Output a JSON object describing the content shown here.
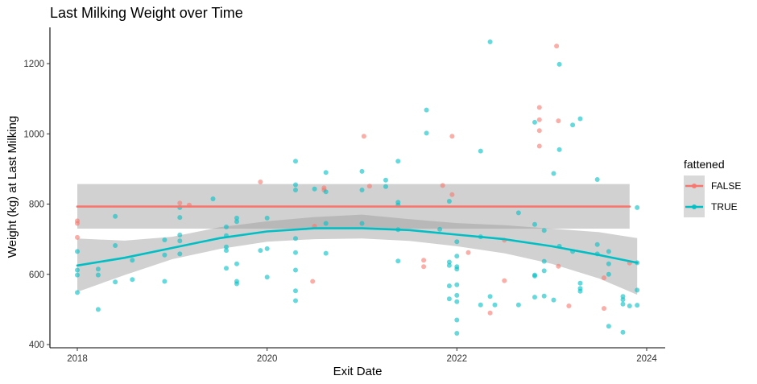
{
  "chart_data": {
    "type": "scatter",
    "title": "Last Milking Weight over Time",
    "xlabel": "Exit Date",
    "ylabel": "Weight (kg) at Last Milking",
    "xlim": [
      2017.75,
      2024.15
    ],
    "ylim": [
      395,
      1300
    ],
    "xticks": [
      2018,
      2020,
      2022,
      2024
    ],
    "xtick_labels": [
      "2018",
      "2020",
      "2022",
      "2024"
    ],
    "yticks": [
      400,
      600,
      800,
      1000,
      1200
    ],
    "ytick_labels": [
      "400",
      "600",
      "800",
      "1000",
      "1200"
    ],
    "grid": false,
    "legend": {
      "title": "fattened",
      "position": "right",
      "entries": [
        {
          "label": "FALSE",
          "color": "#F8766D"
        },
        {
          "label": "TRUE",
          "color": "#00BFC4"
        }
      ]
    },
    "series": [
      {
        "name": "FALSE",
        "color": "#F8766D",
        "points": [
          [
            2018.0,
            745
          ],
          [
            2018.0,
            752
          ],
          [
            2018.0,
            705
          ],
          [
            2019.08,
            803
          ],
          [
            2019.18,
            797
          ],
          [
            2019.93,
            863
          ],
          [
            2020.5,
            737
          ],
          [
            2020.48,
            580
          ],
          [
            2020.6,
            846
          ],
          [
            2020.6,
            840
          ],
          [
            2021.02,
            993
          ],
          [
            2021.08,
            851
          ],
          [
            2021.65,
            640
          ],
          [
            2021.65,
            622
          ],
          [
            2021.85,
            853
          ],
          [
            2021.95,
            993
          ],
          [
            2021.95,
            827
          ],
          [
            2022.12,
            662
          ],
          [
            2022.35,
            490
          ],
          [
            2022.5,
            582
          ],
          [
            2022.5,
            697
          ],
          [
            2022.87,
            1075
          ],
          [
            2022.87,
            1040
          ],
          [
            2022.87,
            1009
          ],
          [
            2022.87,
            965
          ],
          [
            2023.05,
            1250
          ],
          [
            2023.07,
            1037
          ],
          [
            2023.07,
            623
          ],
          [
            2023.18,
            510
          ],
          [
            2023.55,
            590
          ],
          [
            2023.55,
            503
          ],
          [
            2023.82,
            632
          ]
        ]
      },
      {
        "name": "TRUE",
        "color": "#00BFC4",
        "points": [
          [
            2018.0,
            665
          ],
          [
            2018.0,
            612
          ],
          [
            2018.0,
            598
          ],
          [
            2018.0,
            548
          ],
          [
            2018.22,
            615
          ],
          [
            2018.22,
            598
          ],
          [
            2018.22,
            500
          ],
          [
            2018.4,
            765
          ],
          [
            2018.4,
            682
          ],
          [
            2018.4,
            578
          ],
          [
            2018.58,
            640
          ],
          [
            2018.58,
            585
          ],
          [
            2018.92,
            698
          ],
          [
            2018.92,
            655
          ],
          [
            2018.92,
            580
          ],
          [
            2019.08,
            790
          ],
          [
            2019.08,
            762
          ],
          [
            2019.08,
            712
          ],
          [
            2019.08,
            695
          ],
          [
            2019.08,
            658
          ],
          [
            2019.43,
            815
          ],
          [
            2019.57,
            735
          ],
          [
            2019.57,
            710
          ],
          [
            2019.57,
            678
          ],
          [
            2019.57,
            668
          ],
          [
            2019.57,
            617
          ],
          [
            2019.68,
            760
          ],
          [
            2019.68,
            750
          ],
          [
            2019.68,
            630
          ],
          [
            2019.68,
            580
          ],
          [
            2019.68,
            573
          ],
          [
            2019.93,
            668
          ],
          [
            2020.0,
            760
          ],
          [
            2020.0,
            673
          ],
          [
            2020.0,
            592
          ],
          [
            2020.3,
            922
          ],
          [
            2020.3,
            855
          ],
          [
            2020.3,
            840
          ],
          [
            2020.3,
            702
          ],
          [
            2020.3,
            662
          ],
          [
            2020.3,
            612
          ],
          [
            2020.3,
            553
          ],
          [
            2020.3,
            525
          ],
          [
            2020.5,
            843
          ],
          [
            2020.62,
            890
          ],
          [
            2020.62,
            835
          ],
          [
            2020.62,
            745
          ],
          [
            2020.62,
            660
          ],
          [
            2021.0,
            893
          ],
          [
            2021.0,
            840
          ],
          [
            2021.0,
            745
          ],
          [
            2021.25,
            868
          ],
          [
            2021.25,
            850
          ],
          [
            2021.38,
            922
          ],
          [
            2021.38,
            805
          ],
          [
            2021.38,
            797
          ],
          [
            2021.38,
            727
          ],
          [
            2021.38,
            638
          ],
          [
            2021.68,
            1068
          ],
          [
            2021.68,
            1002
          ],
          [
            2021.82,
            728
          ],
          [
            2021.92,
            808
          ],
          [
            2021.92,
            635
          ],
          [
            2021.92,
            625
          ],
          [
            2021.92,
            567
          ],
          [
            2021.92,
            530
          ],
          [
            2022.0,
            693
          ],
          [
            2022.0,
            652
          ],
          [
            2022.0,
            622
          ],
          [
            2022.0,
            615
          ],
          [
            2022.0,
            570
          ],
          [
            2022.0,
            540
          ],
          [
            2022.0,
            522
          ],
          [
            2022.0,
            470
          ],
          [
            2022.0,
            432
          ],
          [
            2022.25,
            951
          ],
          [
            2022.25,
            707
          ],
          [
            2022.25,
            513
          ],
          [
            2022.35,
            1262
          ],
          [
            2022.35,
            537
          ],
          [
            2022.4,
            513
          ],
          [
            2022.65,
            775
          ],
          [
            2022.65,
            513
          ],
          [
            2022.82,
            1033
          ],
          [
            2022.82,
            742
          ],
          [
            2022.82,
            598
          ],
          [
            2022.82,
            595
          ],
          [
            2022.82,
            535
          ],
          [
            2022.92,
            725
          ],
          [
            2022.92,
            637
          ],
          [
            2022.92,
            610
          ],
          [
            2022.92,
            538
          ],
          [
            2023.02,
            887
          ],
          [
            2023.02,
            527
          ],
          [
            2023.08,
            1198
          ],
          [
            2023.08,
            955
          ],
          [
            2023.08,
            680
          ],
          [
            2023.22,
            1025
          ],
          [
            2023.22,
            665
          ],
          [
            2023.3,
            1043
          ],
          [
            2023.3,
            575
          ],
          [
            2023.3,
            560
          ],
          [
            2023.3,
            552
          ],
          [
            2023.48,
            870
          ],
          [
            2023.48,
            685
          ],
          [
            2023.48,
            658
          ],
          [
            2023.6,
            665
          ],
          [
            2023.6,
            630
          ],
          [
            2023.6,
            600
          ],
          [
            2023.6,
            452
          ],
          [
            2023.75,
            537
          ],
          [
            2023.75,
            528
          ],
          [
            2023.75,
            515
          ],
          [
            2023.75,
            435
          ],
          [
            2023.82,
            510
          ],
          [
            2023.9,
            790
          ],
          [
            2023.9,
            633
          ],
          [
            2023.9,
            555
          ],
          [
            2023.9,
            512
          ]
        ]
      }
    ],
    "smooth": [
      {
        "name": "FALSE",
        "color": "#F8766D",
        "x": [
          2018.0,
          2023.82
        ],
        "y": [
          793,
          793
        ],
        "lo": [
          730,
          730
        ],
        "hi": [
          857,
          857
        ]
      },
      {
        "name": "TRUE",
        "color": "#00BFC4",
        "x": [
          2018.0,
          2018.5,
          2019.0,
          2019.5,
          2020.0,
          2020.5,
          2021.0,
          2021.5,
          2022.0,
          2022.5,
          2023.0,
          2023.5,
          2023.9
        ],
        "y": [
          625,
          647,
          675,
          703,
          722,
          731,
          731,
          726,
          713,
          700,
          680,
          655,
          633
        ],
        "lo": [
          550,
          598,
          643,
          672,
          693,
          700,
          702,
          695,
          680,
          660,
          630,
          588,
          542
        ],
        "hi": [
          702,
          696,
          707,
          734,
          751,
          763,
          770,
          757,
          746,
          740,
          730,
          720,
          703
        ]
      }
    ]
  }
}
